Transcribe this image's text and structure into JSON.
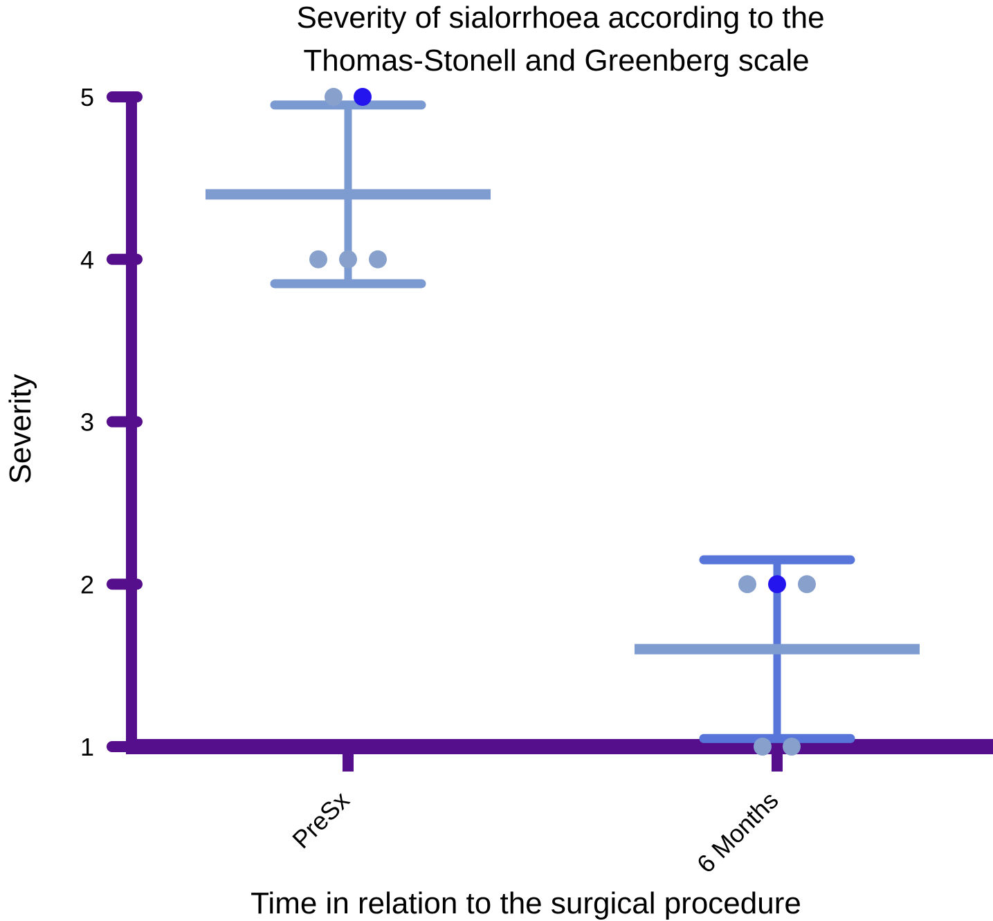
{
  "chart_data": {
    "type": "scatter",
    "title": [
      "Severity of sialorrhoea according to the",
      "Thomas-Stonell and Greenberg scale"
    ],
    "xlabel": "Time in relation to the surgical procedure",
    "ylabel": "Severity",
    "categories": [
      "PreSx",
      "6 Months"
    ],
    "yticks": [
      "1",
      "2",
      "3",
      "4",
      "5"
    ],
    "ylim": [
      1,
      5
    ],
    "grid": false,
    "groups": [
      {
        "category": "PreSx",
        "points": [
          5,
          5,
          4,
          4,
          4
        ],
        "highlighted_point": 5,
        "mean": 4.4,
        "sd_upper": 4.95,
        "sd_lower": 3.85
      },
      {
        "category": "6 Months",
        "points": [
          2,
          2,
          2,
          1,
          1
        ],
        "highlighted_point": 2,
        "mean": 1.6,
        "sd_upper": 2.15,
        "sd_lower": 1.05
      }
    ],
    "colors": {
      "axis": "#560f8c",
      "points": "#87a0cc",
      "highlight": "#2414ee",
      "mean_bar": "#7f9cd1",
      "error_bar_presx": "#7c9ad2",
      "error_bar_6months": "#5876da"
    }
  }
}
